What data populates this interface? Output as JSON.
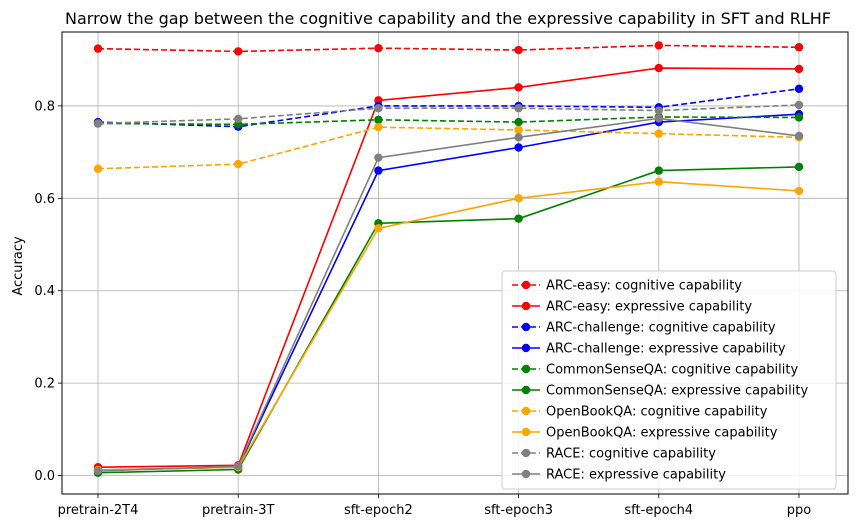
{
  "chart_data": {
    "type": "line",
    "title": "Narrow the gap between the cognitive capability and the expressive capability in SFT and RLHF",
    "xlabel": "",
    "ylabel": "Accuracy",
    "categories": [
      "pretrain-2T4",
      "pretrain-3T",
      "sft-epoch2",
      "sft-epoch3",
      "sft-epoch4",
      "ppo"
    ],
    "ylim": [
      -0.04,
      0.96
    ],
    "yticks": [
      0.0,
      0.2,
      0.4,
      0.6,
      0.8
    ],
    "ytick_labels": [
      "0.0",
      "0.2",
      "0.4",
      "0.6",
      "0.8"
    ],
    "grid": true,
    "legend_position": "lower-right",
    "series": [
      {
        "name": "ARC-easy: cognitive capability",
        "color": "#ff0000",
        "style": "dashed",
        "values": [
          0.924,
          0.918,
          0.925,
          0.921,
          0.931,
          0.927
        ]
      },
      {
        "name": "ARC-easy: expressive capability",
        "color": "#ff0000",
        "style": "solid",
        "values": [
          0.018,
          0.022,
          0.812,
          0.84,
          0.882,
          0.88
        ]
      },
      {
        "name": "ARC-challenge: cognitive capability",
        "color": "#0000ff",
        "style": "dashed",
        "values": [
          0.765,
          0.755,
          0.8,
          0.8,
          0.797,
          0.837
        ]
      },
      {
        "name": "ARC-challenge: expressive capability",
        "color": "#0000ff",
        "style": "solid",
        "values": [
          0.012,
          0.018,
          0.66,
          0.71,
          0.765,
          0.782
        ]
      },
      {
        "name": "CommonSenseQA: cognitive capability",
        "color": "#008000",
        "style": "dashed",
        "values": [
          0.762,
          0.76,
          0.77,
          0.765,
          0.776,
          0.775
        ]
      },
      {
        "name": "CommonSenseQA: expressive capability",
        "color": "#008000",
        "style": "solid",
        "values": [
          0.006,
          0.013,
          0.546,
          0.556,
          0.66,
          0.668
        ]
      },
      {
        "name": "OpenBookQA: cognitive capability",
        "color": "#ffa500",
        "style": "dashed",
        "values": [
          0.664,
          0.674,
          0.754,
          0.748,
          0.74,
          0.732
        ]
      },
      {
        "name": "OpenBookQA: expressive capability",
        "color": "#ffa500",
        "style": "solid",
        "values": [
          0.012,
          0.018,
          0.535,
          0.6,
          0.636,
          0.616
        ]
      },
      {
        "name": "RACE: cognitive capability",
        "color": "#808080",
        "style": "dashed",
        "values": [
          0.762,
          0.772,
          0.795,
          0.795,
          0.79,
          0.802
        ]
      },
      {
        "name": "RACE: expressive capability",
        "color": "#808080",
        "style": "solid",
        "values": [
          0.01,
          0.02,
          0.688,
          0.732,
          0.773,
          0.735
        ]
      }
    ]
  }
}
